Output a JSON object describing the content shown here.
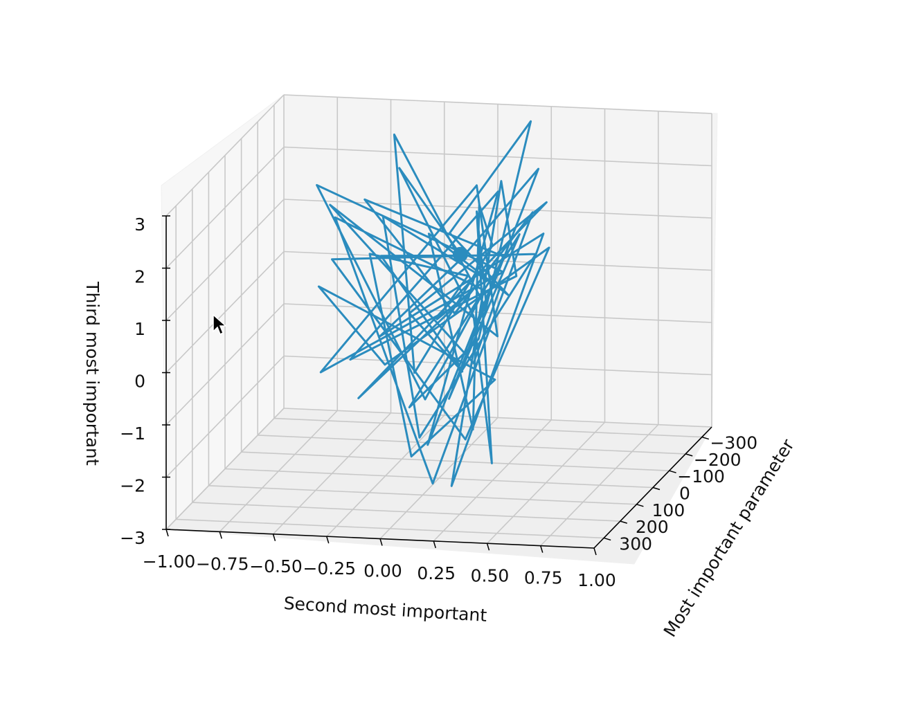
{
  "chart_data": {
    "type": "line3d",
    "xlabel": "Most important parameter",
    "ylabel": "Second most important",
    "zlabel": "Third most important",
    "x_ticks": [
      "−300",
      "−200",
      "−100",
      "0",
      "100",
      "200",
      "300"
    ],
    "y_ticks": [
      "−1.00",
      "−0.75",
      "−0.50",
      "−0.25",
      "0.00",
      "0.25",
      "0.50",
      "0.75",
      "1.00"
    ],
    "z_ticks": [
      "−3",
      "−2",
      "−1",
      "0",
      "1",
      "2",
      "3"
    ],
    "xlim": [
      -360,
      360
    ],
    "ylim": [
      -1.0,
      1.0
    ],
    "zlim": [
      -3,
      3
    ],
    "grid": true,
    "series": [
      {
        "color": "#2b8cbe",
        "marker": "start-dot",
        "points": [
          [
            0,
            0.1,
            1.3
          ],
          [
            -150,
            -0.3,
            2.4
          ],
          [
            50,
            0.2,
            0.3
          ],
          [
            200,
            0.4,
            -2.0
          ],
          [
            -100,
            0.1,
            1.8
          ],
          [
            100,
            0.3,
            0.6
          ],
          [
            -250,
            -0.4,
            2.7
          ],
          [
            150,
            0.0,
            -0.5
          ],
          [
            0,
            0.25,
            1.5
          ],
          [
            -50,
            0.15,
            2.1
          ],
          [
            250,
            0.35,
            -1.2
          ],
          [
            -200,
            -0.2,
            1.0
          ],
          [
            100,
            0.4,
            0.9
          ],
          [
            0,
            0.05,
            1.7
          ],
          [
            -300,
            0.2,
            2.9
          ],
          [
            150,
            0.3,
            0.2
          ],
          [
            50,
            -0.1,
            -1.5
          ],
          [
            -100,
            0.3,
            1.4
          ],
          [
            200,
            0.2,
            -0.8
          ],
          [
            -150,
            0.35,
            2.5
          ],
          [
            0,
            0.1,
            1.2
          ],
          [
            100,
            -0.2,
            0.0
          ],
          [
            -50,
            0.45,
            1.6
          ],
          [
            250,
            0.25,
            -2.3
          ],
          [
            -250,
            0.1,
            1.9
          ],
          [
            50,
            0.4,
            1.1
          ],
          [
            150,
            -0.3,
            -0.3
          ],
          [
            -100,
            0.2,
            2.2
          ],
          [
            200,
            0.1,
            -1.7
          ],
          [
            0,
            0.3,
            1.3
          ],
          [
            -200,
            -0.5,
            1.6
          ],
          [
            100,
            0.15,
            0.5
          ],
          [
            -50,
            0.4,
            2.0
          ],
          [
            300,
            0.2,
            -2.1
          ],
          [
            -150,
            -0.6,
            1.4
          ],
          [
            50,
            0.25,
            0.8
          ],
          [
            150,
            0.05,
            -1.0
          ],
          [
            -300,
            -0.8,
            1.5
          ],
          [
            0,
            0.3,
            1.0
          ],
          [
            200,
            -0.4,
            -0.4
          ],
          [
            -100,
            0.1,
            2.3
          ],
          [
            100,
            0.35,
            0.1
          ],
          [
            -250,
            -0.7,
            1.3
          ],
          [
            50,
            0.2,
            -0.6
          ],
          [
            150,
            0.4,
            1.2
          ],
          [
            -50,
            -0.3,
            1.8
          ],
          [
            250,
            0.1,
            -1.4
          ],
          [
            -200,
            0.3,
            0.7
          ],
          [
            0,
            -0.5,
            1.1
          ],
          [
            100,
            0.2,
            -1.9
          ],
          [
            -150,
            0.4,
            1.0
          ],
          [
            200,
            -0.1,
            -0.2
          ],
          [
            -50,
            -0.6,
            0.4
          ],
          [
            50,
            0.3,
            -0.9
          ],
          [
            300,
            0.1,
            -1.6
          ],
          [
            -100,
            -0.4,
            0.9
          ],
          [
            150,
            0.25,
            1.4
          ],
          [
            -250,
            -0.2,
            -0.8
          ],
          [
            0,
            0.15,
            0.6
          ],
          [
            100,
            -0.3,
            -1.2
          ],
          [
            -200,
            0.35,
            1.7
          ],
          [
            50,
            -0.1,
            0.3
          ],
          [
            250,
            0.3,
            -0.1
          ],
          [
            -300,
            -0.5,
            0.2
          ],
          [
            0,
            0.2,
            1.3
          ]
        ]
      }
    ]
  }
}
